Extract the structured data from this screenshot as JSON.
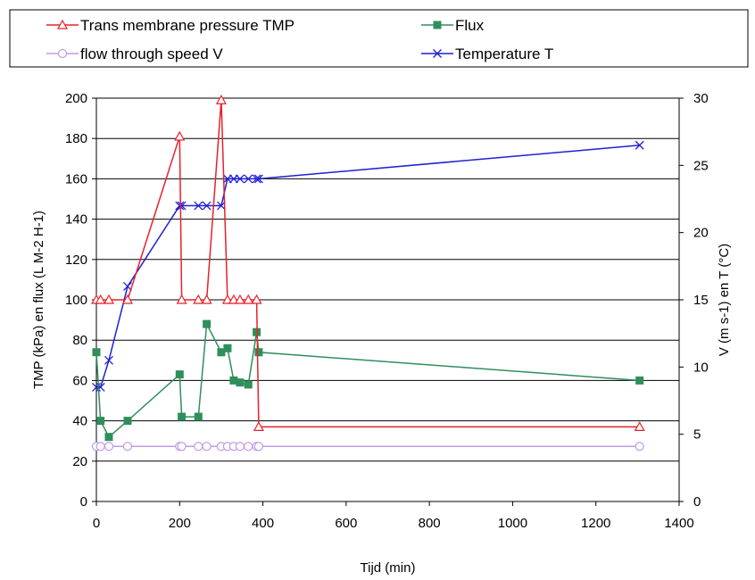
{
  "chart_data": {
    "type": "line",
    "xlabel": "Tijd (min)",
    "ylabel_left": "TMP (kPa) en flux (L M-2 H-1)",
    "ylabel_right": "V (m s-1) en T (°C)",
    "xlim": [
      0,
      1400
    ],
    "xticks": [
      0,
      200,
      400,
      600,
      800,
      1000,
      1200,
      1400
    ],
    "ylim_left": [
      0,
      200
    ],
    "yticks_left": [
      0,
      20,
      40,
      60,
      80,
      100,
      120,
      140,
      160,
      180,
      200
    ],
    "ylim_right": [
      0,
      30
    ],
    "yticks_right": [
      0,
      5,
      10,
      15,
      20,
      25,
      30
    ],
    "grid": "horizontal",
    "legend_position": "top",
    "series": [
      {
        "name": "Trans membrane pressure TMP",
        "axis": "left",
        "color": "#e8202a",
        "marker": "triangle",
        "x": [
          0,
          10,
          30,
          75,
          200,
          205,
          245,
          265,
          300,
          315,
          330,
          345,
          365,
          385,
          390,
          1305
        ],
        "y": [
          100,
          100,
          100,
          100,
          181,
          100,
          100,
          100,
          199,
          100,
          100,
          100,
          100,
          100,
          37,
          37
        ]
      },
      {
        "name": "Flux",
        "axis": "left",
        "color": "#2f8f5b",
        "marker": "square",
        "x": [
          0,
          10,
          30,
          75,
          200,
          205,
          245,
          265,
          300,
          315,
          330,
          345,
          365,
          385,
          390,
          1305
        ],
        "y": [
          74,
          40,
          32,
          40,
          63,
          42,
          42,
          88,
          74,
          76,
          60,
          59,
          58,
          84,
          74,
          60
        ]
      },
      {
        "name": "flow through speed V",
        "axis": "right",
        "color": "#c49ae6",
        "marker": "circle",
        "x": [
          0,
          10,
          30,
          75,
          200,
          205,
          245,
          265,
          300,
          315,
          330,
          345,
          365,
          385,
          390,
          1305
        ],
        "y": [
          4.1,
          4.1,
          4.1,
          4.1,
          4.1,
          4.1,
          4.1,
          4.1,
          4.1,
          4.1,
          4.1,
          4.1,
          4.1,
          4.1,
          4.1,
          4.1
        ]
      },
      {
        "name": "Temperature T",
        "axis": "right",
        "color": "#1f1fd6",
        "marker": "x",
        "x": [
          0,
          10,
          30,
          75,
          200,
          205,
          245,
          265,
          300,
          315,
          330,
          345,
          365,
          385,
          390,
          1305
        ],
        "y": [
          8.5,
          8.5,
          10.5,
          16,
          22,
          22,
          22,
          22,
          22,
          24,
          24,
          24,
          24,
          24,
          24,
          26.5
        ]
      }
    ]
  }
}
